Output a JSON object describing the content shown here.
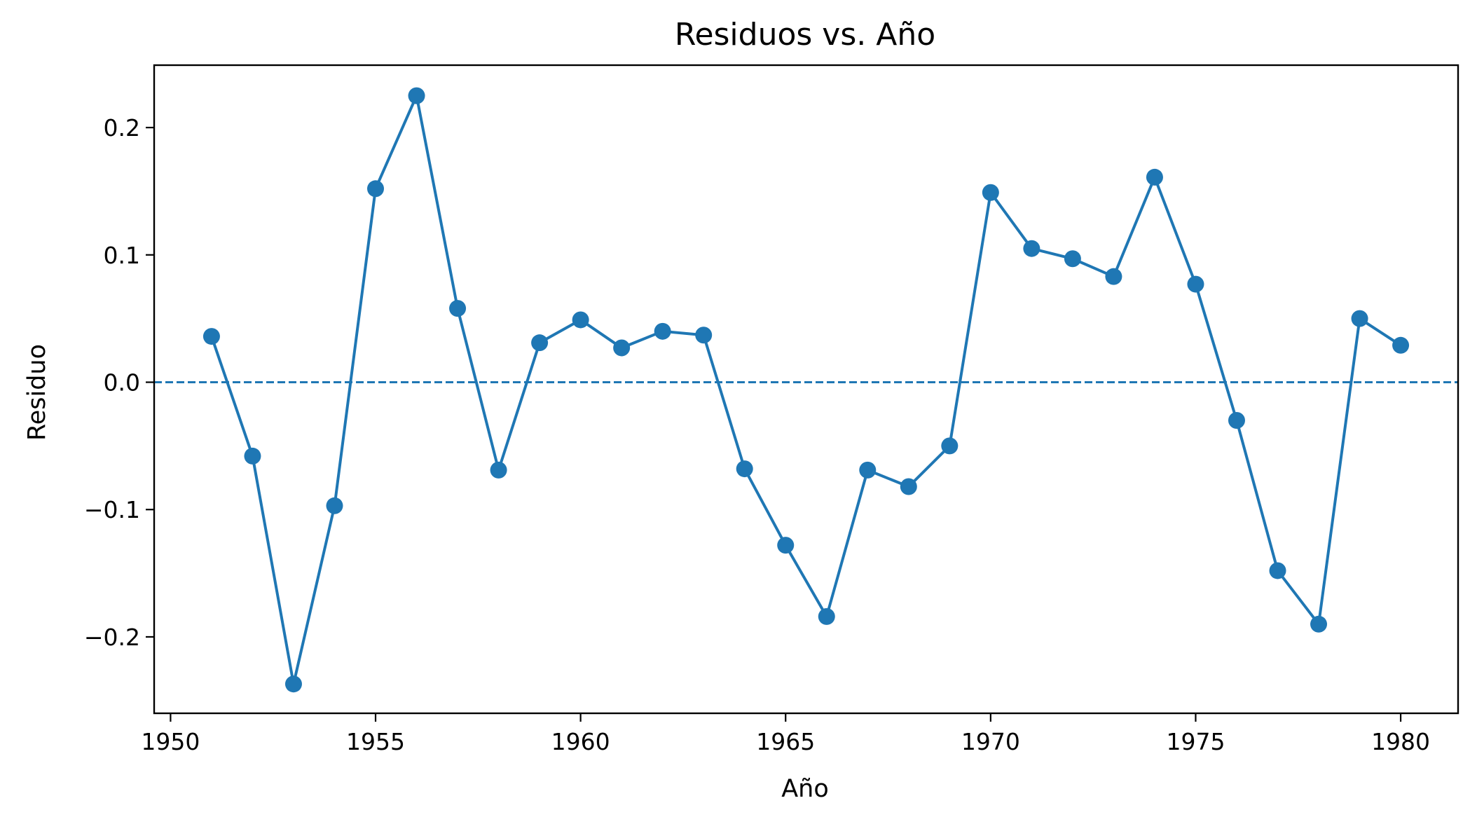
{
  "chart_data": {
    "type": "line",
    "title": "Residuos vs. Año",
    "xlabel": "Año",
    "ylabel": "Residuo",
    "xlim": [
      1949.6,
      1981.4
    ],
    "ylim": [
      -0.26,
      0.249
    ],
    "xticks": [
      1950,
      1955,
      1960,
      1965,
      1970,
      1975,
      1980
    ],
    "xtick_labels": [
      "1950",
      "1955",
      "1960",
      "1965",
      "1970",
      "1975",
      "1980"
    ],
    "yticks": [
      -0.2,
      -0.1,
      0.0,
      0.1,
      0.2
    ],
    "ytick_labels": [
      "−0.2",
      "−0.1",
      "0.0",
      "0.1",
      "0.2"
    ],
    "grid": false,
    "reference_line": {
      "y": 0.0,
      "style": "dashed",
      "color": "#1f77b4"
    },
    "series": [
      {
        "color": "#1f77b4",
        "marker": "circle",
        "x": [
          1951,
          1952,
          1953,
          1954,
          1955,
          1956,
          1957,
          1958,
          1959,
          1960,
          1961,
          1962,
          1963,
          1964,
          1965,
          1966,
          1967,
          1968,
          1969,
          1970,
          1971,
          1972,
          1973,
          1974,
          1975,
          1976,
          1977,
          1978,
          1979,
          1980
        ],
        "y": [
          0.036,
          -0.058,
          -0.237,
          -0.097,
          0.152,
          0.225,
          0.058,
          -0.069,
          0.031,
          0.049,
          0.027,
          0.04,
          0.037,
          -0.068,
          -0.128,
          -0.184,
          -0.069,
          -0.082,
          -0.05,
          0.149,
          0.105,
          0.097,
          0.083,
          0.161,
          0.077,
          -0.03,
          -0.148,
          -0.19,
          0.05,
          0.029
        ]
      }
    ]
  }
}
